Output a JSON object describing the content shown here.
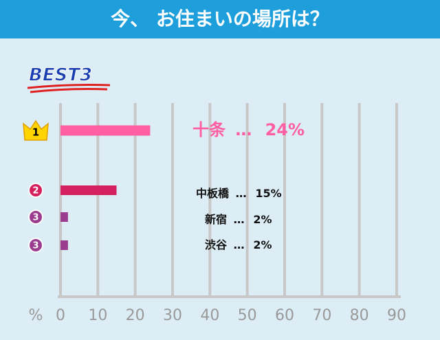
{
  "chart_data": {
    "type": "bar",
    "orientation": "horizontal",
    "title": "今、 お住まいの場所は？",
    "badge": "BEST3",
    "ranks": [
      "1",
      "2",
      "3",
      "3"
    ],
    "categories": [
      "十条",
      "中板橋",
      "新宿",
      "渋谷"
    ],
    "separator": "…",
    "values": [
      24,
      15,
      2,
      2
    ],
    "value_labels": [
      "24%",
      "15%",
      "2%",
      "2%"
    ],
    "colors": [
      "#ff5fa2",
      "#d4205f",
      "#9b3d8f",
      "#9b3d8f"
    ],
    "xlabel": "%",
    "xlim": [
      0,
      90
    ],
    "xticks": [
      0,
      10,
      20,
      30,
      40,
      50,
      60,
      70,
      80,
      90
    ],
    "grid": true
  }
}
